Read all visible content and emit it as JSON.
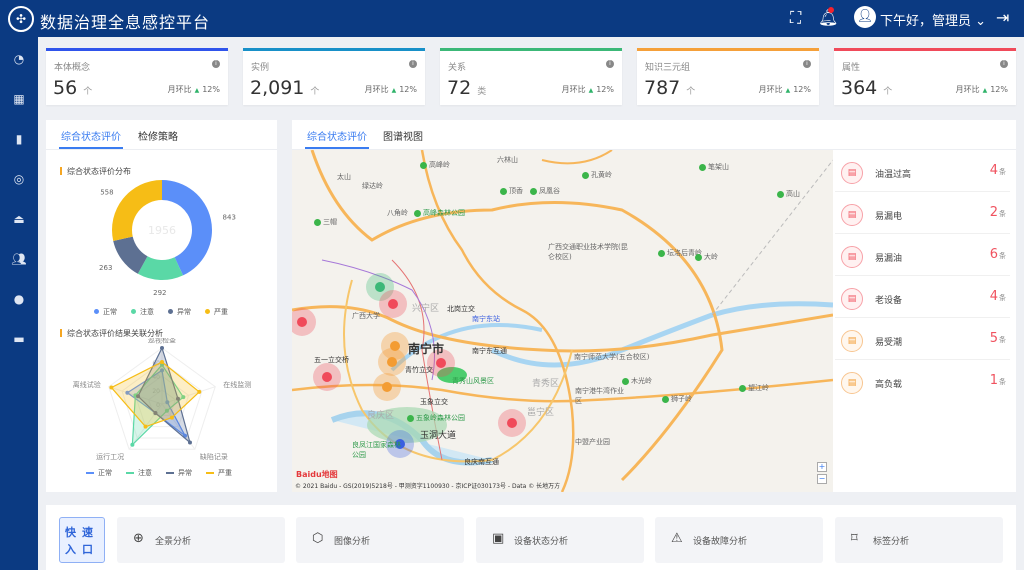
{
  "header": {
    "title": "数据治理全息感控平台",
    "greeting": "下午好，管理员",
    "icons": [
      "fullscreen-icon",
      "bell-icon",
      "user-icon",
      "logout-icon"
    ]
  },
  "sidebar": {
    "icons": [
      "dashboard-icon",
      "grid-icon",
      "bar-chart-icon",
      "target-icon",
      "lock-icon",
      "users-icon",
      "globe-icon",
      "calendar-icon"
    ]
  },
  "kpis": [
    {
      "label": "本体概念",
      "value": "56",
      "unit": "个",
      "mom_label": "月环比",
      "mom": "12%",
      "color": "#2f54eb"
    },
    {
      "label": "实例",
      "value": "2,091",
      "unit": "个",
      "mom_label": "月环比",
      "mom": "12%",
      "color": "#1890c8"
    },
    {
      "label": "关系",
      "value": "72",
      "unit": "类",
      "mom_label": "月环比",
      "mom": "12%",
      "color": "#3cb878"
    },
    {
      "label": "知识三元组",
      "value": "787",
      "unit": "个",
      "mom_label": "月环比",
      "mom": "12%",
      "color": "#f5a03a"
    },
    {
      "label": "属性",
      "value": "364",
      "unit": "个",
      "mom_label": "月环比",
      "mom": "12%",
      "color": "#f04a5a"
    }
  ],
  "left": {
    "tabs": [
      "综合状态评价",
      "检修策略"
    ],
    "section1": "综合状态评价分布",
    "section2": "综合状态评价结果关联分析"
  },
  "middle": {
    "tabs": [
      "综合状态评价",
      "图谱视图"
    ]
  },
  "chart_data": [
    {
      "type": "pie",
      "title": "综合状态评价分布",
      "center_total": "1956",
      "categories": [
        "正常",
        "注意",
        "异常",
        "严重"
      ],
      "values": [
        843,
        292,
        263,
        558
      ],
      "colors": [
        "#5b8ff9",
        "#5ad8a6",
        "#5d7092",
        "#f6bd16"
      ]
    },
    {
      "type": "radar",
      "title": "综合状态评价结果关联分析",
      "axes": [
        "巡视检查",
        "在线监测",
        "缺陷记录",
        "运行工况",
        "离线试验"
      ],
      "ticks": [
        "0",
        "20",
        "40",
        "60"
      ],
      "max": 100,
      "series": [
        {
          "name": "正常",
          "values": [
            60,
            10,
            70,
            20,
            65
          ],
          "color": "#5b8ff9"
        },
        {
          "name": "注意",
          "values": [
            70,
            40,
            15,
            90,
            50
          ],
          "color": "#5ad8a6"
        },
        {
          "name": "异常",
          "values": [
            100,
            30,
            85,
            20,
            45
          ],
          "color": "#5d7092"
        },
        {
          "name": "严重",
          "values": [
            75,
            70,
            30,
            50,
            95
          ],
          "color": "#f6bd16"
        }
      ]
    }
  ],
  "map": {
    "city": "南宁市",
    "labels": [
      "高峰岭",
      "六林山",
      "孔黄岭",
      "笔架山",
      "太山",
      "绿达岭",
      "顶香",
      "凤凰谷",
      "高山",
      "八角岭",
      "高峰森林公园",
      "三帽",
      "广西交通职业技术学院(昆仑校区)",
      "坛洛后青岭",
      "大岭",
      "广西大学",
      "北岗立交",
      "南宁东站",
      "南宁东互通",
      "五一立交桥",
      "青竹立交",
      "青秀山风景区",
      "南宁师范大学(五合校区)",
      "南宁港牛湾作业区",
      "木光岭",
      "狮子岭",
      "望江岭",
      "玉象立交",
      "五象岭森林公园",
      "玉洞大道",
      "良凤江国家森林公园",
      "中盟产业园",
      "良庆南互通",
      "兴宁区",
      "邕宁区",
      "良庆区",
      "青秀区"
    ],
    "copyright": "© 2021 Baidu - GS(2019)5218号 - 甲测资字1100930 - 京ICP证030173号 - Data © 长地万方",
    "logo": "Baidu地图",
    "zoom_in": "+",
    "zoom_out": "−"
  },
  "alerts": [
    {
      "name": "油温过高",
      "count": "4",
      "unit": "条",
      "level": "red"
    },
    {
      "name": "易漏电",
      "count": "2",
      "unit": "条",
      "level": "red"
    },
    {
      "name": "易漏油",
      "count": "6",
      "unit": "条",
      "level": "red"
    },
    {
      "name": "老设备",
      "count": "4",
      "unit": "条",
      "level": "red"
    },
    {
      "name": "易受潮",
      "count": "5",
      "unit": "条",
      "level": "orange"
    },
    {
      "name": "高负载",
      "count": "1",
      "unit": "条",
      "level": "orange"
    }
  ],
  "quick": {
    "title": "快速入口",
    "items": [
      {
        "label": "全景分析",
        "icon": "globe-icon"
      },
      {
        "label": "图像分析",
        "icon": "cube-icon"
      },
      {
        "label": "设备状态分析",
        "icon": "monitor-chart-icon"
      },
      {
        "label": "设备故障分析",
        "icon": "warning-icon"
      },
      {
        "label": "标签分析",
        "icon": "bookmark-icon"
      }
    ]
  }
}
